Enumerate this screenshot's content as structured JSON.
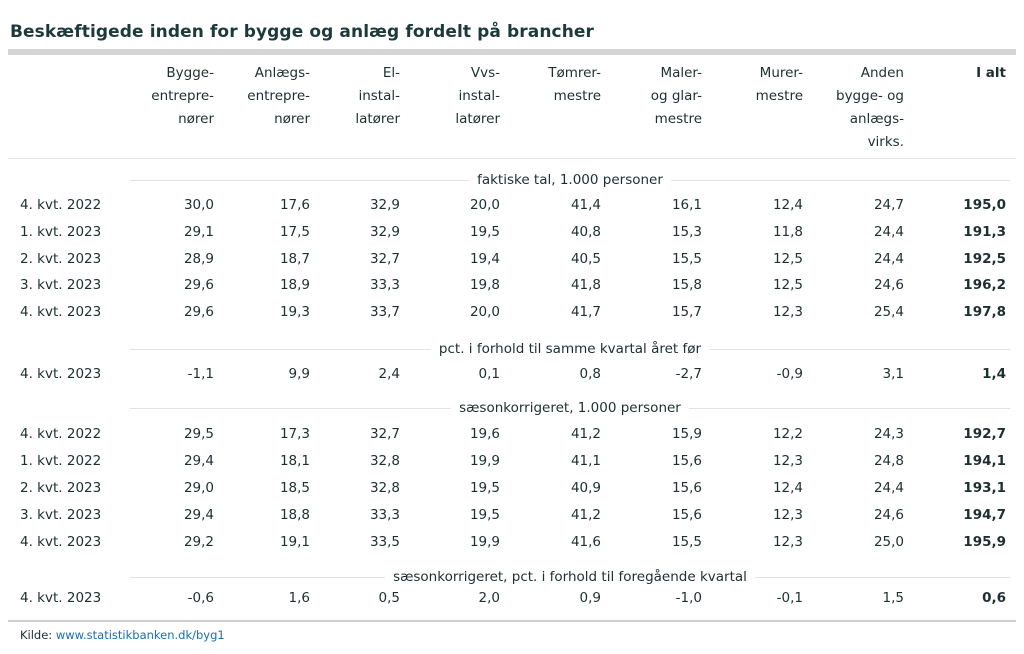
{
  "title": "Beskæftigede inden for bygge og anlæg fordelt på brancher",
  "columns": [
    "Bygge-\nentrepre-\nnører",
    "Anlægs-\nentrepre-\nnører",
    "El-\ninstal-\nlatører",
    "Vvs-\ninstal-\nlatører",
    "Tømrer-\nmestre",
    "Maler-\nog glar-\nmestre",
    "Murer-\nmestre",
    "Anden\nbygge- og\nanlægs-\nvirks.",
    "I alt"
  ],
  "sections": [
    {
      "label": "faktiske tal, 1.000 personer",
      "rows": [
        {
          "period": "4. kvt. 2022",
          "values": [
            "30,0",
            "17,6",
            "32,9",
            "20,0",
            "41,4",
            "16,1",
            "12,4",
            "24,7",
            "195,0"
          ]
        },
        {
          "period": "1. kvt. 2023",
          "values": [
            "29,1",
            "17,5",
            "32,9",
            "19,5",
            "40,8",
            "15,3",
            "11,8",
            "24,4",
            "191,3"
          ]
        },
        {
          "period": "2. kvt. 2023",
          "values": [
            "28,9",
            "18,7",
            "32,7",
            "19,4",
            "40,5",
            "15,5",
            "12,5",
            "24,4",
            "192,5"
          ]
        },
        {
          "period": "3. kvt. 2023",
          "values": [
            "29,6",
            "18,9",
            "33,3",
            "19,8",
            "41,8",
            "15,8",
            "12,5",
            "24,6",
            "196,2"
          ]
        },
        {
          "period": "4. kvt. 2023",
          "values": [
            "29,6",
            "19,3",
            "33,7",
            "20,0",
            "41,7",
            "15,7",
            "12,3",
            "25,4",
            "197,8"
          ]
        }
      ]
    },
    {
      "label": "pct. i forhold til samme kvartal året før",
      "rows": [
        {
          "period": "4. kvt. 2023",
          "values": [
            "-1,1",
            "9,9",
            "2,4",
            "0,1",
            "0,8",
            "-2,7",
            "-0,9",
            "3,1",
            "1,4"
          ]
        }
      ]
    },
    {
      "label": "sæsonkorrigeret, 1.000 personer",
      "rows": [
        {
          "period": "4. kvt. 2022",
          "values": [
            "29,5",
            "17,3",
            "32,7",
            "19,6",
            "41,2",
            "15,9",
            "12,2",
            "24,3",
            "192,7"
          ]
        },
        {
          "period": "1. kvt. 2022",
          "values": [
            "29,4",
            "18,1",
            "32,8",
            "19,9",
            "41,1",
            "15,6",
            "12,3",
            "24,8",
            "194,1"
          ]
        },
        {
          "period": "2. kvt. 2023",
          "values": [
            "29,0",
            "18,5",
            "32,8",
            "19,5",
            "40,9",
            "15,6",
            "12,4",
            "24,4",
            "193,1"
          ]
        },
        {
          "period": "3. kvt. 2023",
          "values": [
            "29,4",
            "18,8",
            "33,3",
            "19,5",
            "41,2",
            "15,6",
            "12,3",
            "24,6",
            "194,7"
          ]
        },
        {
          "period": "4. kvt. 2023",
          "values": [
            "29,2",
            "19,1",
            "33,5",
            "19,9",
            "41,6",
            "15,5",
            "12,3",
            "25,0",
            "195,9"
          ]
        }
      ]
    },
    {
      "label": "sæsonkorrigeret, pct. i forhold til foregående kvartal",
      "rows": [
        {
          "period": "4. kvt. 2023",
          "values": [
            "-0,6",
            "1,6",
            "0,5",
            "2,0",
            "0,9",
            "-1,0",
            "-0,1",
            "1,5",
            "0,6"
          ]
        }
      ]
    }
  ],
  "source": {
    "label": "Kilde: ",
    "link": "www.statistikbanken.dk/byg1"
  }
}
